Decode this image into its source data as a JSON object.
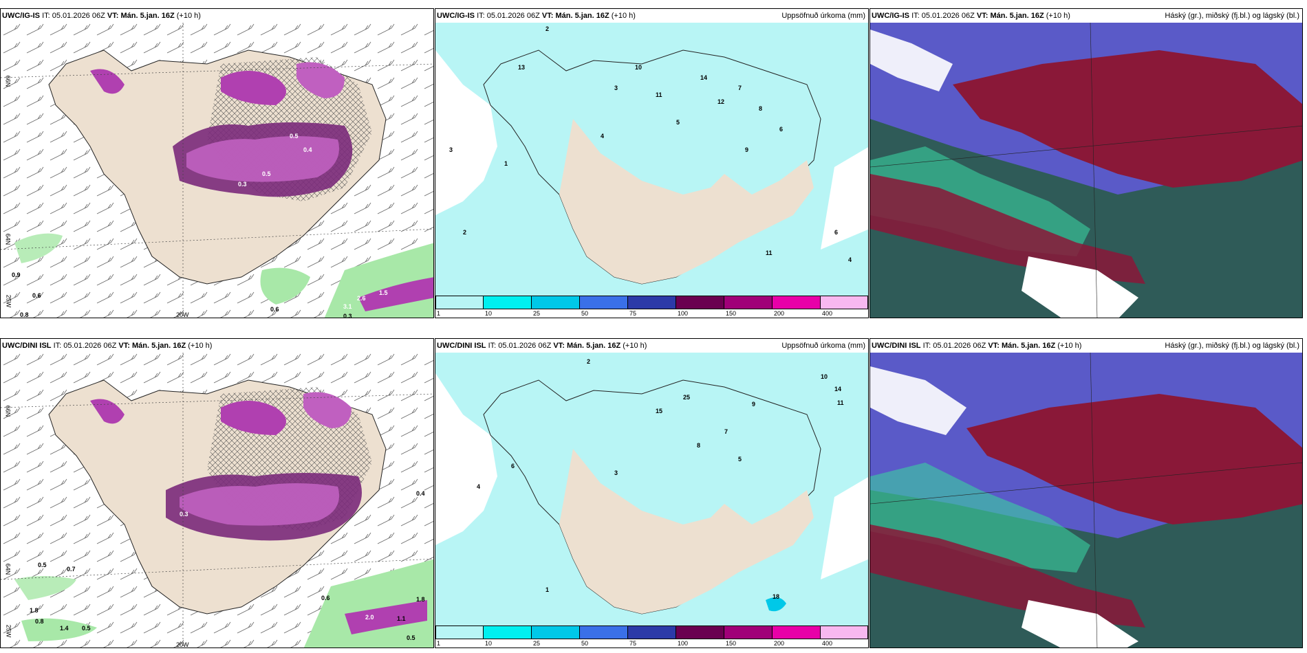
{
  "rows": [
    {
      "model": "UWC/IG-IS",
      "init_label": "IT:",
      "init_value": "05.01.2026 06Z",
      "valid_label": "VT:",
      "valid_value": "Mán. 5.jan. 16Z",
      "lead": "(+10 h)",
      "panels": [
        {
          "title_right": "",
          "labels": [
            "0.9",
            "0.6",
            "0.8",
            "0.6",
            "3.1",
            "0.3",
            "2.6",
            "1.5",
            "0.5",
            "0.4",
            "0.5",
            "0.3"
          ]
        },
        {
          "title_right": "Uppsöfnuð úrkoma (mm)",
          "labels": [
            "2",
            "3",
            "10",
            "11",
            "13",
            "14",
            "12",
            "7",
            "8",
            "5",
            "4",
            "6",
            "9",
            "1",
            "3",
            "2",
            "11",
            "6",
            "4"
          ]
        },
        {
          "title_right": "Háský (gr.), miðský (fj.bl.) og lágský (bl.)"
        }
      ]
    },
    {
      "model": "UWC/DINI ISL",
      "init_label": "IT:",
      "init_value": "05.01.2026 06Z",
      "valid_label": "VT:",
      "valid_value": "Mán. 5.jan. 16Z",
      "lead": "(+10 h)",
      "panels": [
        {
          "title_right": "",
          "labels": [
            "0.5",
            "0.7",
            "1.8",
            "0.8",
            "1.4",
            "0.5",
            "0.6",
            "2.0",
            "1.1",
            "0.5",
            "1.8",
            "0.4",
            "0.3"
          ]
        },
        {
          "title_right": "Uppsöfnuð úrkoma (mm)",
          "labels": [
            "2",
            "10",
            "14",
            "11",
            "25",
            "15",
            "9",
            "7",
            "8",
            "5",
            "3",
            "4",
            "6",
            "1",
            "18"
          ]
        },
        {
          "title_right": "Háský (gr.), miðský (fj.bl.) og lágský (bl.)"
        }
      ]
    }
  ],
  "axis_labels": {
    "lat_66": "66N",
    "lat_64": "64N",
    "lon_25": "25W",
    "lon_20": "20W"
  },
  "colorbar": {
    "ticks": [
      "1",
      "10",
      "25",
      "50",
      "75",
      "100",
      "150",
      "200",
      "400"
    ],
    "colors": [
      "#b8f5f5",
      "#00f0f0",
      "#00c8e8",
      "#3a70e8",
      "#2c3aa8",
      "#6a0050",
      "#a00078",
      "#e800a8",
      "#f8b8f0"
    ]
  },
  "colors": {
    "land": "#ede0d0",
    "precip_light": "#b8f5f5",
    "snow_purple": "#b040b0",
    "rain_green": "#a8e8a8",
    "high_cloud": "#8a1838",
    "mid_cloud": "#2f5b58",
    "low_cloud": "#5a5ac8"
  }
}
